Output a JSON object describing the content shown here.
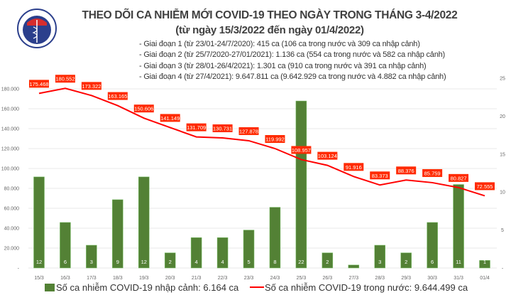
{
  "logo_text": "BỘ Y TẾ – MINISTRY OF HEALTH",
  "title": "THEO DÕI CA NHIỄM MỚI COVID-19 THEO NGÀY TRONG THÁNG 3-4/2022",
  "subtitle": "(từ ngày 15/3/2022 đến ngày 01/4/2022)",
  "notes": [
    "- Giai đoạn 1 (từ 23/01-24/7/2020): 415 ca (106 ca trong nước và 309 ca nhập cảnh)",
    "- Giai đoạn 2 (từ 25/7/2020-27/01/2021): 1.136 ca (554 ca trong nước và 582 ca nhập cảnh)",
    "- Giai đoạn 3 (từ 28/01-26/4/2021): 1.301 ca (910 ca trong nước và 391 ca nhập cảnh)",
    "- Giai đoạn 4 (từ 27/4/2021): 9.647.811 ca (9.642.929 ca trong nước và 4.882 ca nhập cảnh)"
  ],
  "chart_data": {
    "type": "bar+line",
    "categories": [
      "15/3",
      "16/3",
      "17/3",
      "18/3",
      "19/3",
      "20/3",
      "21/3",
      "22/3",
      "23/3",
      "24/3",
      "25/3",
      "26/3",
      "27/3",
      "28/3",
      "29/3",
      "30/3",
      "31/3",
      "01/4"
    ],
    "series": [
      {
        "name": "Số ca nhiễm COVID-19 nhập cảnh: 6.164 ca",
        "type": "bar",
        "axis": "right",
        "color": "#538135",
        "values": [
          12,
          6,
          3,
          9,
          12,
          2,
          4,
          4,
          5,
          8,
          22,
          2,
          0,
          3,
          2,
          6,
          11,
          1
        ],
        "labels": [
          "12",
          "6",
          "3",
          "9",
          "12",
          "2",
          "4",
          "4",
          "5",
          "8",
          "22",
          "2",
          "-",
          "3",
          "2",
          "6",
          "11",
          "1"
        ]
      },
      {
        "name": "Số ca nhiễm COVID-19 trong nước: 9.644.499 ca",
        "type": "line",
        "axis": "left",
        "color": "#ff0000",
        "values": [
          175468,
          180552,
          173322,
          163165,
          150606,
          141149,
          131709,
          130731,
          127878,
          119992,
          108957,
          103124,
          91916,
          83373,
          88376,
          85759,
          80827,
          72555
        ],
        "labels": [
          "175.468",
          "180.552",
          "173.322",
          "163.165",
          "150.606",
          "141.149",
          "131.709",
          "130.731",
          "127.878",
          "119.992",
          "108.957",
          "103.124",
          "91.916",
          "83.373",
          "88.376",
          "85.759",
          "80.827",
          "72.555"
        ]
      }
    ],
    "left_axis": {
      "ylim": [
        0,
        180000
      ],
      "ticks": [
        "-",
        "20.000",
        "40.000",
        "60.000",
        "80.000",
        "100.000",
        "120.000",
        "140.000",
        "160.000",
        "180.000"
      ]
    },
    "right_axis": {
      "ylim": [
        0,
        25
      ],
      "ticks": [
        "-",
        "5",
        "10",
        "15",
        "20",
        "25"
      ]
    },
    "grid": true,
    "legend": "bottom"
  }
}
